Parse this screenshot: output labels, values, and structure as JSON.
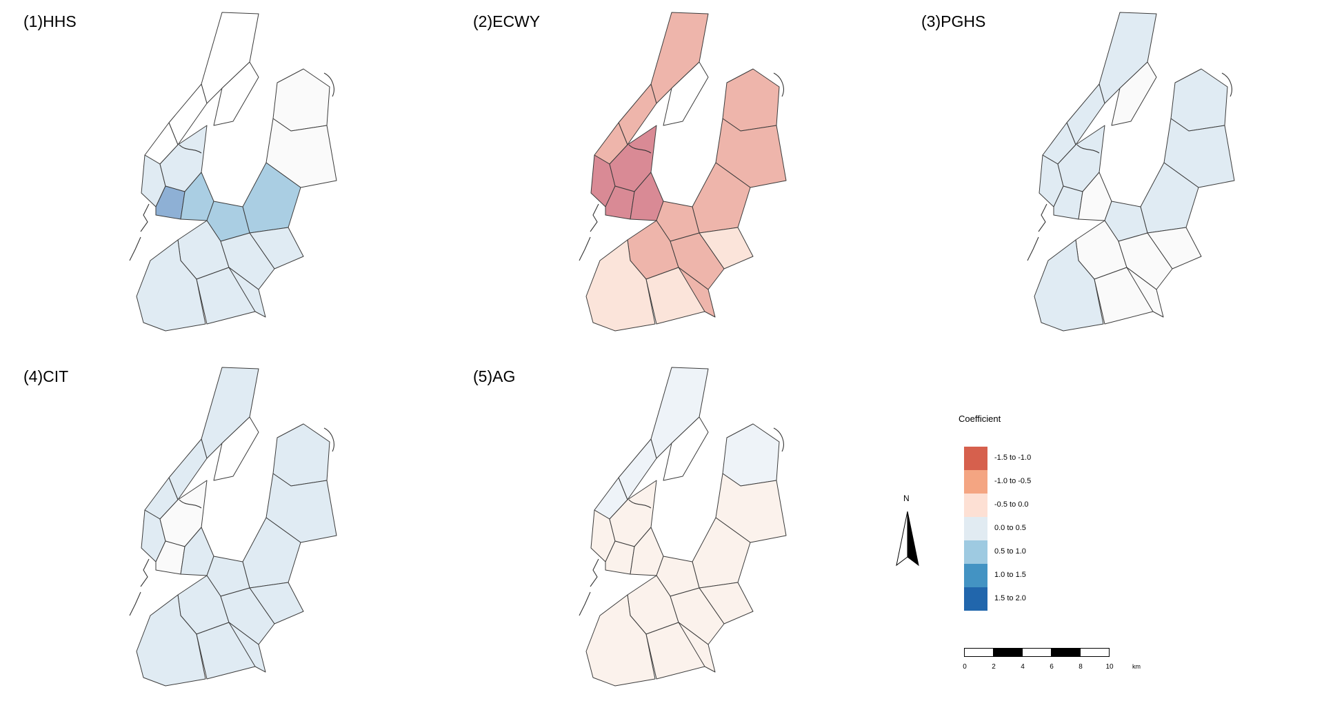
{
  "panels": [
    {
      "title": "(1)HHS",
      "fills": [
        "#ffffff",
        "#ffffff",
        "#ffffff",
        "#ffffff",
        "#fafafa",
        "#fafafa",
        "#e0ebf3",
        "#e0ebf3",
        "#8eb0d5",
        "#aacee3",
        "#aacee3",
        "#aacee3",
        "#e0ebf3",
        "#e0ebf3",
        "#e0ebf3",
        "#e0ebf3",
        "#e0ebf3",
        "#e0ebf3"
      ]
    },
    {
      "title": "(2)ECWY",
      "fills": [
        "#eeb5ab",
        "#eeb5ab",
        "#eeb5ab",
        "#ffffff",
        "#eeb5ab",
        "#eeb5ab",
        "#d98a95",
        "#d98a95",
        "#d98a95",
        "#d98a95",
        "#eeb5ab",
        "#eeb5ab",
        "#fbe4da",
        "#eeb5ab",
        "#eeb5ab",
        "#fbe4da",
        "#fbe4da",
        "#eeb5ab"
      ]
    },
    {
      "title": "(3)PGHS",
      "fills": [
        "#e0ebf3",
        "#e0ebf3",
        "#e0ebf3",
        "#fafafa",
        "#e0ebf3",
        "#e0ebf3",
        "#e0ebf3",
        "#e0ebf3",
        "#e0ebf3",
        "#fafafa",
        "#e0ebf3",
        "#e0ebf3",
        "#fafafa",
        "#fafafa",
        "#fafafa",
        "#e0ebf3",
        "#fafafa",
        "#fafafa"
      ]
    },
    {
      "title": "(4)CIT",
      "fills": [
        "#e0ebf3",
        "#e0ebf3",
        "#e0ebf3",
        "#ffffff",
        "#e0ebf3",
        "#e0ebf3",
        "#e0ebf3",
        "#fafafa",
        "#fafafa",
        "#e0ebf3",
        "#e0ebf3",
        "#e0ebf3",
        "#e0ebf3",
        "#e0ebf3",
        "#e0ebf3",
        "#e0ebf3",
        "#e0ebf3",
        "#e0ebf3"
      ]
    },
    {
      "title": "(5)AG",
      "fills": [
        "#eef3f8",
        "#eef3f8",
        "#eef3f8",
        "#ffffff",
        "#eef3f8",
        "#fbf2ec",
        "#fbf2ec",
        "#fbf2ec",
        "#fbf2ec",
        "#fbf2ec",
        "#fbf2ec",
        "#fbf2ec",
        "#fbf2ec",
        "#fbf2ec",
        "#fbf2ec",
        "#fbf2ec",
        "#fbf2ec",
        "#fbf2ec"
      ]
    }
  ],
  "legend": {
    "title": "Coefficient",
    "items": [
      {
        "label": "-1.5 to -1.0",
        "color": "#d6604d"
      },
      {
        "label": "-1.0 to -0.5",
        "color": "#f4a582"
      },
      {
        "label": "-0.5 to 0.0",
        "color": "#fde0d4"
      },
      {
        "label": "0.0 to 0.5",
        "color": "#e1ebf2"
      },
      {
        "label": "0.5 to 1.0",
        "color": "#9ecae1"
      },
      {
        "label": "1.0 to 1.5",
        "color": "#4393c3"
      },
      {
        "label": "1.5 to 2.0",
        "color": "#2166ac"
      }
    ]
  },
  "north_arrow": {
    "label": "N"
  },
  "scale_bar": {
    "ticks": [
      "0",
      "2",
      "4",
      "6",
      "8",
      "10"
    ],
    "unit": "km"
  }
}
